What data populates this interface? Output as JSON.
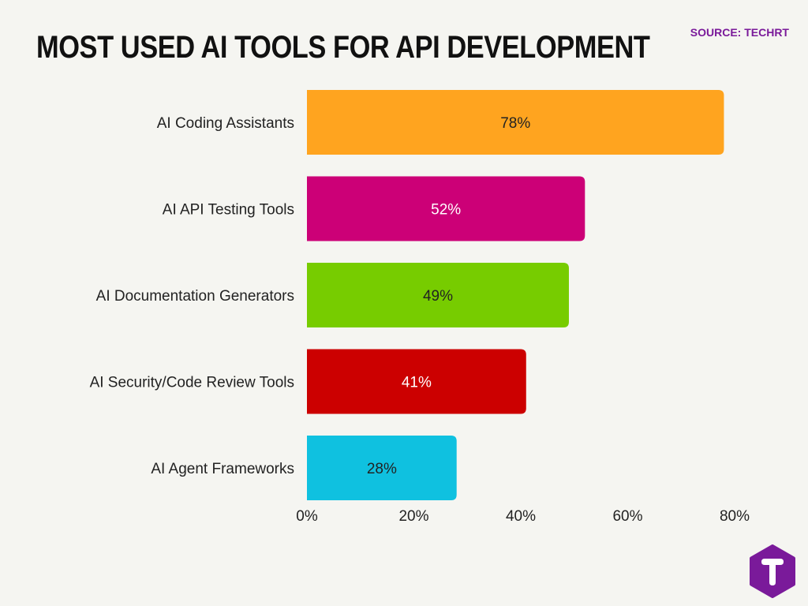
{
  "header": {
    "title": "MOST USED AI TOOLS FOR API DEVELOPMENT",
    "source": "SOURCE: TECHRT"
  },
  "chart_data": {
    "type": "bar",
    "orientation": "horizontal",
    "title": "MOST USED AI TOOLS FOR API DEVELOPMENT",
    "categories": [
      "AI Coding Assistants",
      "AI API Testing Tools",
      "AI Documentation Generators",
      "AI Security/Code Review Tools",
      "AI Agent Frameworks"
    ],
    "values": [
      78,
      52,
      49,
      41,
      28
    ],
    "data_labels": [
      "78%",
      "52%",
      "49%",
      "41%",
      "28%"
    ],
    "colors": [
      "#ffa41f",
      "#cc0077",
      "#77cc00",
      "#cc0000",
      "#0fc1e0"
    ],
    "label_colors": [
      "#222222",
      "#ffffff",
      "#222222",
      "#ffffff",
      "#222222"
    ],
    "xlim": [
      0,
      80
    ],
    "x_ticks": [
      0,
      20,
      40,
      60,
      80
    ],
    "x_tick_labels": [
      "0%",
      "20%",
      "40%",
      "60%",
      "80%"
    ],
    "grid": false,
    "legend": "none",
    "xlabel": "",
    "ylabel": ""
  },
  "logo": {
    "icon": "techrt-logo-icon",
    "color": "#7a1a9a"
  }
}
